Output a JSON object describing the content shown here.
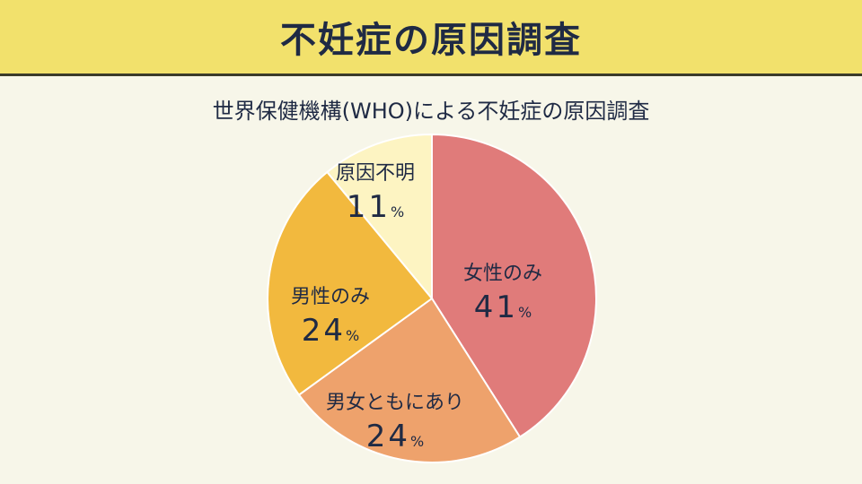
{
  "header": {
    "title": "不妊症の原因調査"
  },
  "chart_data": {
    "type": "pie",
    "title": "世界保健機構(WHO)による不妊症の原因調査",
    "unit": "%",
    "start": "top",
    "direction": "clockwise",
    "slices": [
      {
        "label": "女性のみ",
        "value": 41,
        "color": "#e07b7a"
      },
      {
        "label": "男女ともにあり",
        "value": 24,
        "color": "#eea26c"
      },
      {
        "label": "男性のみ",
        "value": 24,
        "color": "#f2b93e"
      },
      {
        "label": "原因不明",
        "value": 11,
        "color": "#fdf4c2"
      }
    ]
  }
}
